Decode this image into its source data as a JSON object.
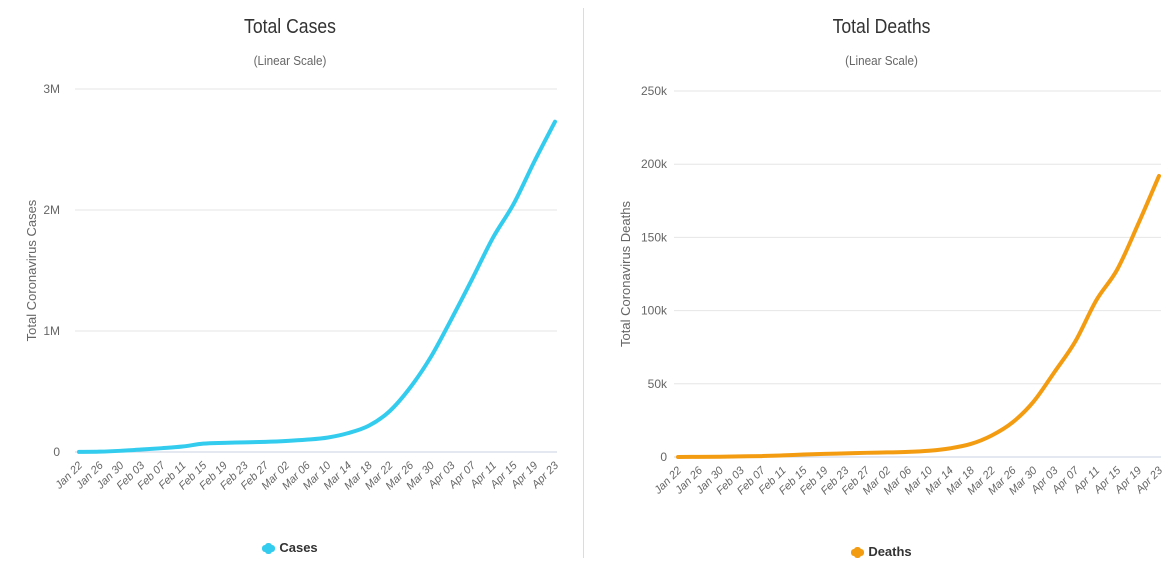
{
  "chart_data": [
    {
      "type": "line",
      "title": "Total Cases",
      "subtitle": "(Linear Scale)",
      "ylabel": "Total Coronavirus Cases",
      "xlabel": "",
      "ylim": [
        0,
        3000000
      ],
      "y_ticks": [
        0,
        1000000,
        2000000,
        3000000
      ],
      "y_tick_labels": [
        "0",
        "1M",
        "2M",
        "3M"
      ],
      "x_tick_labels": [
        "Jan 22",
        "Jan 26",
        "Jan 30",
        "Feb 03",
        "Feb 07",
        "Feb 11",
        "Feb 15",
        "Feb 19",
        "Feb 23",
        "Feb 27",
        "Mar 02",
        "Mar 06",
        "Mar 10",
        "Mar 14",
        "Mar 18",
        "Mar 22",
        "Mar 26",
        "Mar 30",
        "Apr 03",
        "Apr 07",
        "Apr 11",
        "Apr 15",
        "Apr 19",
        "Apr 23"
      ],
      "grid": true,
      "legend_position": "bottom",
      "series": [
        {
          "name": "Cases",
          "color": "#33ccee",
          "values": [
            580,
            2800,
            9800,
            20600,
            31500,
            45200,
            69000,
            75700,
            79400,
            83700,
            90900,
            102000,
            119000,
            156000,
            217000,
            336000,
            532000,
            785000,
            1100000,
            1430000,
            1770000,
            2050000,
            2400000,
            2730000
          ]
        }
      ]
    },
    {
      "type": "line",
      "title": "Total Deaths",
      "subtitle": "(Linear Scale)",
      "ylabel": "Total Coronavirus Deaths",
      "xlabel": "",
      "ylim": [
        0,
        250000
      ],
      "y_ticks": [
        0,
        50000,
        100000,
        150000,
        200000,
        250000
      ],
      "y_tick_labels": [
        "0",
        "50k",
        "100k",
        "150k",
        "200k",
        "250k"
      ],
      "x_tick_labels": [
        "Jan 22",
        "Jan 26",
        "Jan 30",
        "Feb 03",
        "Feb 07",
        "Feb 11",
        "Feb 15",
        "Feb 19",
        "Feb 23",
        "Feb 27",
        "Mar 02",
        "Mar 06",
        "Mar 10",
        "Mar 14",
        "Mar 18",
        "Mar 22",
        "Mar 26",
        "Mar 30",
        "Apr 03",
        "Apr 07",
        "Apr 11",
        "Apr 15",
        "Apr 19",
        "Apr 23"
      ],
      "grid": true,
      "legend_position": "bottom",
      "series": [
        {
          "name": "Deaths",
          "color": "#f39c12",
          "values": [
            17,
            80,
            210,
            430,
            640,
            1100,
            1670,
            2130,
            2470,
            2860,
            3120,
            3460,
            4260,
            5900,
            8900,
            14700,
            23700,
            37800,
            58000,
            79000,
            107000,
            128000,
            159000,
            192000
          ]
        }
      ]
    }
  ]
}
